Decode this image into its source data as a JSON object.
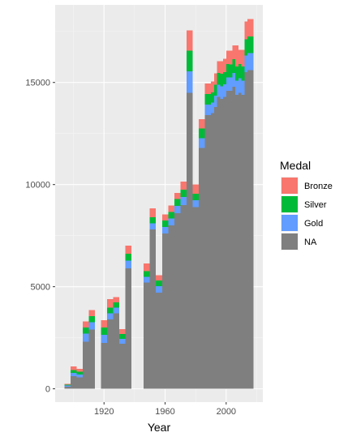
{
  "chart_data": {
    "type": "bar",
    "stacked": true,
    "title": "",
    "xlabel": "Year",
    "ylabel": "",
    "xlim": [
      1888,
      2024
    ],
    "ylim": [
      -650,
      18800
    ],
    "x_ticks": [
      1920,
      1960,
      2000
    ],
    "y_ticks": [
      0,
      5000,
      10000,
      15000
    ],
    "y_tick_labels": [
      "0",
      "5000",
      "10000",
      "15000"
    ],
    "bin_width": 4,
    "grid": true,
    "legend": {
      "title": "Medal",
      "position": "right",
      "entries": [
        "Bronze",
        "Silver",
        "Gold",
        "NA"
      ]
    },
    "colors": {
      "Bronze": "#F8766D",
      "Silver": "#00BA38",
      "Gold": "#619CFF",
      "NA": "#7F7F7F"
    },
    "x": [
      1896,
      1900,
      1904,
      1908,
      1912,
      1920,
      1924,
      1928,
      1932,
      1936,
      1948,
      1952,
      1956,
      1960,
      1964,
      1968,
      1972,
      1976,
      1980,
      1984,
      1988,
      1992,
      1994,
      1996,
      1998,
      2000,
      2002,
      2004,
      2006,
      2008,
      2010,
      2012,
      2014,
      2016
    ],
    "series": [
      {
        "name": "NA",
        "values": [
          100,
          620,
          560,
          2300,
          2900,
          2250,
          3400,
          3700,
          2200,
          5900,
          5200,
          7800,
          4700,
          7600,
          8000,
          8600,
          9000,
          14500,
          8900,
          11800,
          13400,
          13500,
          13800,
          14300,
          14200,
          14300,
          14600,
          14600,
          14800,
          14400,
          14500,
          14400,
          15500,
          15600
        ]
      },
      {
        "name": "Gold",
        "values": [
          60,
          160,
          140,
          400,
          350,
          400,
          300,
          270,
          240,
          370,
          280,
          300,
          320,
          330,
          340,
          360,
          390,
          1050,
          330,
          480,
          520,
          520,
          560,
          590,
          620,
          610,
          650,
          640,
          670,
          690,
          700,
          690,
          820,
          830
        ]
      },
      {
        "name": "Silver",
        "values": [
          50,
          140,
          130,
          300,
          300,
          350,
          280,
          260,
          250,
          340,
          280,
          300,
          280,
          320,
          320,
          330,
          360,
          1000,
          320,
          460,
          510,
          500,
          540,
          580,
          600,
          600,
          650,
          640,
          670,
          690,
          700,
          690,
          800,
          820
        ]
      },
      {
        "name": "Bronze",
        "values": [
          40,
          180,
          150,
          300,
          300,
          350,
          420,
          270,
          230,
          400,
          370,
          430,
          270,
          280,
          310,
          310,
          400,
          1000,
          450,
          460,
          510,
          520,
          540,
          580,
          600,
          650,
          660,
          660,
          680,
          690,
          690,
          700,
          860,
          850
        ]
      }
    ]
  }
}
